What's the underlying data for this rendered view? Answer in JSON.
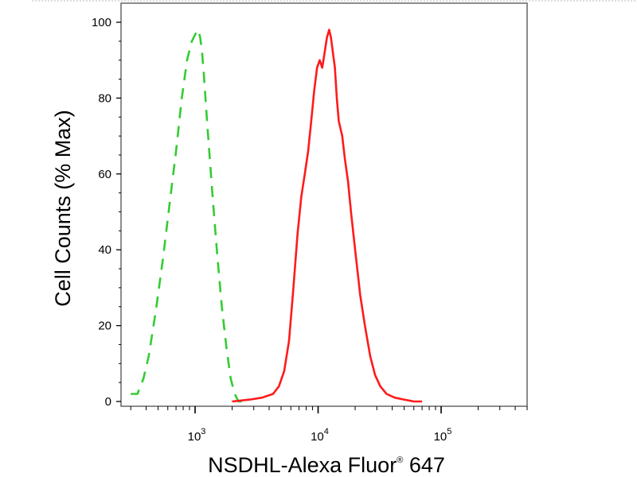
{
  "chart_data": {
    "type": "line",
    "title": "",
    "xlabel": "NSDHL-Alexa Fluor",
    "xlabel_superscript": "®",
    "xlabel_suffix": " 647",
    "ylabel": "Cell Counts (% Max)",
    "x_scale": "log",
    "xlim": [
      250,
      500000
    ],
    "ylim": [
      0,
      105
    ],
    "grid": false,
    "legend": "none",
    "y_ticks": [
      0,
      20,
      40,
      60,
      80,
      100
    ],
    "x_tick_labels": [
      {
        "value": 1000,
        "base": "10",
        "exp": "3"
      },
      {
        "value": 10000,
        "base": "10",
        "exp": "4"
      },
      {
        "value": 100000,
        "base": "10",
        "exp": "5"
      }
    ],
    "series": [
      {
        "color": "#33cc33",
        "dash": "14,10",
        "x": [
          300,
          340,
          380,
          420,
          480,
          550,
          620,
          700,
          780,
          860,
          940,
          1010,
          1060,
          1100,
          1140,
          1180,
          1250,
          1330,
          1420,
          1520,
          1650,
          1800,
          1950,
          2100,
          2250,
          2500
        ],
        "y": [
          2,
          2,
          6,
          12,
          24,
          38,
          52,
          66,
          80,
          90,
          95,
          97,
          98,
          96,
          92,
          86,
          74,
          62,
          50,
          38,
          25,
          14,
          6,
          2,
          0,
          0
        ]
      },
      {
        "color": "#ff1a1a",
        "dash": "",
        "x": [
          2000,
          2800,
          3500,
          4300,
          4800,
          5300,
          5800,
          6300,
          6800,
          7300,
          7800,
          8300,
          8800,
          9300,
          9800,
          10300,
          10800,
          11300,
          11800,
          12300,
          12700,
          13200,
          13700,
          14200,
          14700,
          15200,
          15700,
          16500,
          17500,
          18500,
          20000,
          22000,
          24000,
          26500,
          29000,
          32000,
          36000,
          42000,
          50000,
          60000,
          70000
        ],
        "y": [
          0,
          0.5,
          1,
          2,
          4,
          8,
          16,
          30,
          44,
          54,
          60,
          66,
          74,
          82,
          88,
          90,
          88,
          92,
          96,
          98,
          96,
          92,
          88,
          80,
          74,
          72,
          70,
          64,
          58,
          50,
          40,
          28,
          20,
          12,
          7,
          4,
          2,
          1,
          0.5,
          0,
          0
        ]
      }
    ]
  }
}
